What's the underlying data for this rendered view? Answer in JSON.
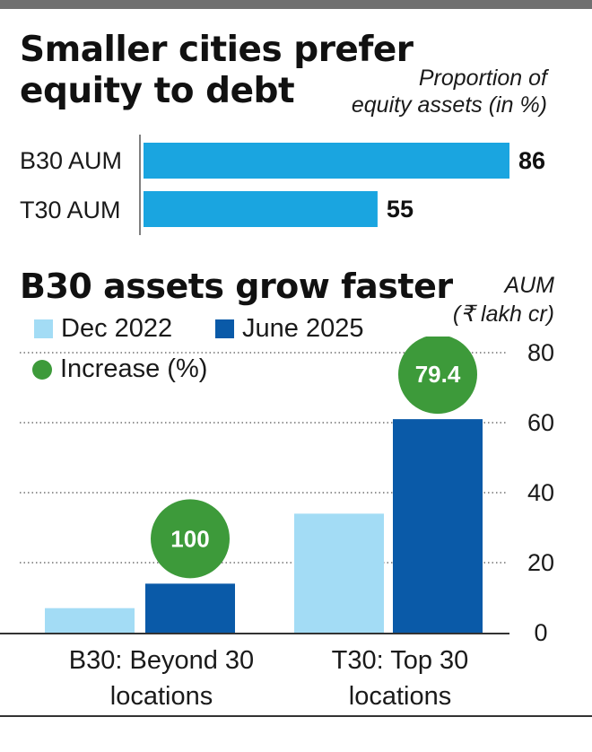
{
  "colors": {
    "hbar": "#1aa5e0",
    "dec": "#a3dcf5",
    "june": "#0a5aa8",
    "increase": "#3d9a3a",
    "grid": "#555555"
  },
  "chart_data": [
    {
      "type": "bar",
      "orientation": "horizontal",
      "title": "Smaller cities prefer equity to debt",
      "note": "Proportion of equity assets (in %)",
      "note_lines": [
        "Proportion of",
        "equity assets (in %)"
      ],
      "categories": [
        "B30 AUM",
        "T30 AUM"
      ],
      "values": [
        86,
        55
      ],
      "value_labels": [
        "86",
        "55"
      ],
      "xlim": [
        0,
        86
      ]
    },
    {
      "type": "bar",
      "title": "B30 assets grow faster",
      "ylabel": "AUM (₹ lakh cr)",
      "ylabel_lines": [
        "AUM",
        "(₹ lakh cr)"
      ],
      "ylim": [
        0,
        80
      ],
      "yticks": [
        "0",
        "20",
        "40",
        "60",
        "80"
      ],
      "categories": [
        "B30: Beyond 30 locations",
        "T30: Top 30 locations"
      ],
      "category_lines": [
        [
          "B30: Beyond 30",
          "locations"
        ],
        [
          "T30: Top 30",
          "locations"
        ]
      ],
      "series": [
        {
          "name": "Dec 2022",
          "values": [
            7,
            34
          ]
        },
        {
          "name": "June 2025",
          "values": [
            14,
            61
          ]
        }
      ],
      "increase": {
        "name": "Increase (%)",
        "labels": [
          "100",
          "79.4"
        ]
      }
    }
  ]
}
